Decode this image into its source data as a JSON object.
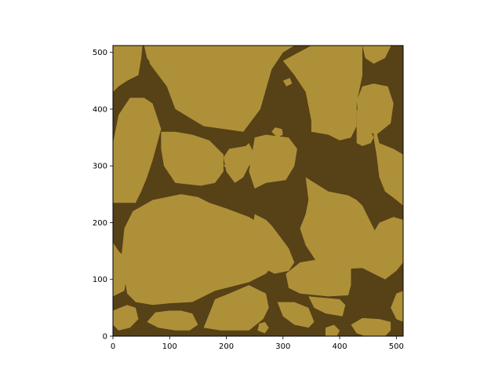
{
  "chart_data": {
    "type": "heatmap",
    "title": "",
    "xlabel": "",
    "ylabel": "",
    "xlim": [
      0,
      512
    ],
    "ylim": [
      0,
      512
    ],
    "x_ticks": [
      0,
      100,
      200,
      300,
      400,
      500
    ],
    "y_ticks": [
      0,
      100,
      200,
      300,
      400,
      500
    ],
    "x_tick_labels": [
      "0",
      "100",
      "200",
      "300",
      "400",
      "500"
    ],
    "y_tick_labels": [
      "0",
      "100",
      "200",
      "300",
      "400",
      "500"
    ],
    "grid": false,
    "legend": "none",
    "colors": {
      "background": "#574117",
      "grain": "#AE9039"
    },
    "classes": [
      "boundary",
      "grain"
    ],
    "grains": [
      [
        [
          55,
          512
        ],
        [
          60,
          490
        ],
        [
          75,
          470
        ],
        [
          110,
          460
        ],
        [
          140,
          455
        ],
        [
          150,
          480
        ],
        [
          155,
          512
        ]
      ],
      [
        [
          0,
          430
        ],
        [
          10,
          440
        ],
        [
          25,
          450
        ],
        [
          45,
          460
        ],
        [
          50,
          490
        ],
        [
          52,
          512
        ],
        [
          0,
          512
        ]
      ],
      [
        [
          60,
          512
        ],
        [
          65,
          480
        ],
        [
          80,
          460
        ],
        [
          95,
          440
        ],
        [
          110,
          400
        ],
        [
          160,
          370
        ],
        [
          230,
          360
        ],
        [
          260,
          400
        ],
        [
          280,
          470
        ],
        [
          300,
          500
        ],
        [
          320,
          512
        ]
      ],
      [
        [
          300,
          485
        ],
        [
          320,
          460
        ],
        [
          340,
          430
        ],
        [
          350,
          380
        ],
        [
          350,
          360
        ],
        [
          380,
          355
        ],
        [
          400,
          345
        ],
        [
          420,
          350
        ],
        [
          430,
          370
        ],
        [
          430,
          410
        ],
        [
          440,
          460
        ],
        [
          440,
          512
        ],
        [
          350,
          512
        ]
      ],
      [
        [
          440,
          512
        ],
        [
          445,
          490
        ],
        [
          460,
          480
        ],
        [
          480,
          490
        ],
        [
          490,
          510
        ],
        [
          490,
          512
        ]
      ],
      [
        [
          0,
          340
        ],
        [
          10,
          390
        ],
        [
          30,
          420
        ],
        [
          55,
          420
        ],
        [
          70,
          410
        ],
        [
          85,
          365
        ],
        [
          70,
          310
        ],
        [
          60,
          280
        ],
        [
          50,
          255
        ],
        [
          40,
          235
        ],
        [
          0,
          235
        ]
      ],
      [
        [
          430,
          415
        ],
        [
          435,
          365
        ],
        [
          465,
          355
        ],
        [
          490,
          375
        ],
        [
          495,
          410
        ],
        [
          485,
          440
        ],
        [
          460,
          445
        ],
        [
          440,
          440
        ]
      ],
      [
        [
          460,
          380
        ],
        [
          470,
          340
        ],
        [
          495,
          330
        ],
        [
          512,
          320
        ],
        [
          512,
          230
        ],
        [
          500,
          240
        ],
        [
          480,
          255
        ],
        [
          470,
          280
        ],
        [
          465,
          320
        ],
        [
          460,
          350
        ]
      ],
      [
        [
          430,
          400
        ],
        [
          440,
          385
        ],
        [
          445,
          380
        ],
        [
          455,
          360
        ],
        [
          460,
          350
        ],
        [
          455,
          340
        ],
        [
          440,
          335
        ],
        [
          430,
          340
        ]
      ],
      [
        [
          85,
          360
        ],
        [
          110,
          360
        ],
        [
          140,
          355
        ],
        [
          170,
          345
        ],
        [
          195,
          320
        ],
        [
          195,
          290
        ],
        [
          180,
          270
        ],
        [
          155,
          265
        ],
        [
          110,
          270
        ],
        [
          90,
          300
        ],
        [
          85,
          330
        ]
      ],
      [
        [
          215,
          270
        ],
        [
          230,
          280
        ],
        [
          240,
          300
        ],
        [
          245,
          320
        ],
        [
          235,
          335
        ],
        [
          205,
          330
        ],
        [
          195,
          315
        ],
        [
          200,
          290
        ]
      ],
      [
        [
          250,
          260
        ],
        [
          270,
          270
        ],
        [
          305,
          275
        ],
        [
          320,
          300
        ],
        [
          325,
          330
        ],
        [
          310,
          350
        ],
        [
          270,
          355
        ],
        [
          250,
          350
        ],
        [
          245,
          320
        ],
        [
          240,
          290
        ]
      ],
      [
        [
          340,
          280
        ],
        [
          380,
          255
        ],
        [
          415,
          248
        ],
        [
          430,
          240
        ],
        [
          440,
          230
        ],
        [
          455,
          200
        ],
        [
          470,
          170
        ],
        [
          485,
          145
        ],
        [
          470,
          125
        ],
        [
          440,
          120
        ],
        [
          400,
          118
        ],
        [
          360,
          130
        ],
        [
          340,
          160
        ],
        [
          330,
          190
        ],
        [
          340,
          215
        ],
        [
          345,
          240
        ]
      ],
      [
        [
          0,
          165
        ],
        [
          10,
          150
        ],
        [
          20,
          140
        ],
        [
          25,
          110
        ],
        [
          20,
          80
        ],
        [
          0,
          70
        ]
      ],
      [
        [
          25,
          75
        ],
        [
          40,
          60
        ],
        [
          70,
          55
        ],
        [
          100,
          58
        ],
        [
          140,
          60
        ],
        [
          180,
          80
        ],
        [
          240,
          95
        ],
        [
          270,
          110
        ],
        [
          290,
          135
        ],
        [
          290,
          160
        ],
        [
          265,
          195
        ],
        [
          240,
          210
        ],
        [
          200,
          225
        ],
        [
          170,
          235
        ],
        [
          150,
          245
        ],
        [
          120,
          250
        ],
        [
          70,
          240
        ],
        [
          35,
          220
        ],
        [
          20,
          190
        ],
        [
          15,
          140
        ],
        [
          20,
          105
        ]
      ],
      [
        [
          240,
          340
        ],
        [
          250,
          320
        ],
        [
          245,
          305
        ],
        [
          230,
          290
        ],
        [
          210,
          290
        ],
        [
          195,
          300
        ]
      ],
      [
        [
          250,
          215
        ],
        [
          270,
          205
        ],
        [
          280,
          195
        ],
        [
          295,
          175
        ],
        [
          310,
          155
        ],
        [
          320,
          130
        ],
        [
          310,
          115
        ],
        [
          285,
          110
        ],
        [
          265,
          120
        ],
        [
          250,
          150
        ],
        [
          245,
          185
        ]
      ],
      [
        [
          305,
          110
        ],
        [
          310,
          85
        ],
        [
          330,
          75
        ],
        [
          380,
          70
        ],
        [
          415,
          72
        ],
        [
          420,
          90
        ],
        [
          420,
          130
        ],
        [
          400,
          135
        ],
        [
          360,
          135
        ],
        [
          330,
          130
        ]
      ],
      [
        [
          345,
          70
        ],
        [
          355,
          50
        ],
        [
          375,
          40
        ],
        [
          405,
          35
        ],
        [
          410,
          55
        ],
        [
          400,
          65
        ]
      ],
      [
        [
          440,
          120
        ],
        [
          460,
          110
        ],
        [
          480,
          100
        ],
        [
          500,
          115
        ],
        [
          512,
          130
        ],
        [
          512,
          205
        ],
        [
          495,
          210
        ],
        [
          470,
          200
        ],
        [
          455,
          175
        ],
        [
          450,
          145
        ]
      ],
      [
        [
          290,
          60
        ],
        [
          300,
          35
        ],
        [
          320,
          20
        ],
        [
          345,
          15
        ],
        [
          355,
          25
        ],
        [
          345,
          50
        ],
        [
          320,
          60
        ]
      ],
      [
        [
          160,
          15
        ],
        [
          190,
          10
        ],
        [
          240,
          10
        ],
        [
          265,
          30
        ],
        [
          275,
          50
        ],
        [
          270,
          75
        ],
        [
          240,
          90
        ],
        [
          205,
          75
        ],
        [
          180,
          65
        ],
        [
          170,
          40
        ]
      ],
      [
        [
          60,
          25
        ],
        [
          80,
          15
        ],
        [
          110,
          10
        ],
        [
          135,
          10
        ],
        [
          150,
          20
        ],
        [
          140,
          40
        ],
        [
          120,
          45
        ],
        [
          100,
          45
        ],
        [
          75,
          42
        ]
      ],
      [
        [
          0,
          20
        ],
        [
          10,
          10
        ],
        [
          30,
          15
        ],
        [
          45,
          30
        ],
        [
          40,
          50
        ],
        [
          25,
          55
        ],
        [
          0,
          45
        ]
      ],
      [
        [
          420,
          20
        ],
        [
          430,
          5
        ],
        [
          445,
          0
        ],
        [
          480,
          0
        ],
        [
          490,
          10
        ],
        [
          490,
          25
        ],
        [
          470,
          30
        ],
        [
          440,
          32
        ]
      ],
      [
        [
          490,
          50
        ],
        [
          500,
          30
        ],
        [
          512,
          25
        ],
        [
          512,
          80
        ],
        [
          500,
          75
        ]
      ],
      [
        [
          375,
          0
        ],
        [
          395,
          0
        ],
        [
          400,
          10
        ],
        [
          390,
          20
        ],
        [
          375,
          15
        ]
      ],
      [
        [
          330,
          35
        ],
        [
          340,
          25
        ],
        [
          350,
          30
        ],
        [
          345,
          45
        ],
        [
          335,
          45
        ]
      ],
      [
        [
          255,
          10
        ],
        [
          268,
          5
        ],
        [
          275,
          15
        ],
        [
          268,
          25
        ],
        [
          258,
          22
        ]
      ],
      [
        [
          460,
          0
        ],
        [
          470,
          5
        ],
        [
          470,
          12
        ],
        [
          462,
          15
        ],
        [
          455,
          8
        ]
      ],
      [
        [
          280,
          360
        ],
        [
          290,
          350
        ],
        [
          300,
          355
        ],
        [
          298,
          365
        ],
        [
          286,
          368
        ]
      ],
      [
        [
          170,
          220
        ],
        [
          180,
          215
        ],
        [
          188,
          220
        ],
        [
          183,
          230
        ],
        [
          172,
          228
        ]
      ],
      [
        [
          300,
          450
        ],
        [
          306,
          440
        ],
        [
          316,
          445
        ],
        [
          312,
          455
        ]
      ],
      [
        [
          420,
          490
        ],
        [
          428,
          485
        ],
        [
          432,
          492
        ],
        [
          425,
          497
        ]
      ],
      [
        [
          40,
          485
        ],
        [
          46,
          480
        ],
        [
          50,
          488
        ],
        [
          44,
          492
        ]
      ]
    ]
  }
}
